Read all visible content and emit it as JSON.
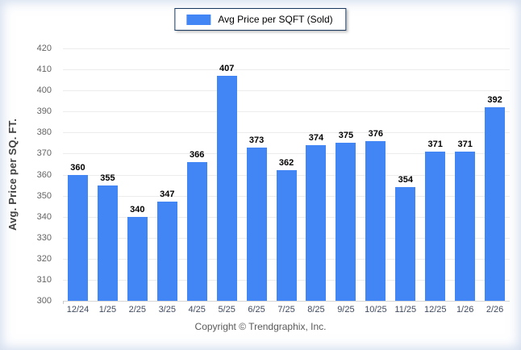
{
  "chart_data": {
    "type": "bar",
    "title": "Avg Price per SQFT (Sold)",
    "series_label": "Avg Price per SQFT (Sold)",
    "categories": [
      "12/24",
      "1/25",
      "2/25",
      "3/25",
      "4/25",
      "5/25",
      "6/25",
      "7/25",
      "8/25",
      "9/25",
      "10/25",
      "11/25",
      "12/25",
      "1/26",
      "2/26"
    ],
    "values": [
      360,
      355,
      340,
      347,
      366,
      407,
      373,
      362,
      374,
      375,
      376,
      354,
      371,
      371,
      392
    ],
    "xlabel": "",
    "ylabel": "Avg. Price per SQ. FT.",
    "ylim": [
      300,
      420
    ],
    "ytick_step": 10,
    "grid": true,
    "legend_position": "top-center",
    "bar_color": "#4285F4"
  },
  "legend": {
    "label": "Avg Price per SQFT (Sold)"
  },
  "footer": {
    "copyright": "Copyright © Trendgraphix, Inc."
  },
  "colors": {
    "bar": "#4285F4",
    "legend_border": "#17375E",
    "gridline": "#ECECEC",
    "baseline": "#D6D6D6",
    "y_tick_text": "#636363",
    "x_tick_text": "#3F4A5F",
    "value_text": "#000000",
    "y_title_text": "#404040",
    "footer_text": "#595959",
    "background": "#FFFFFF"
  }
}
